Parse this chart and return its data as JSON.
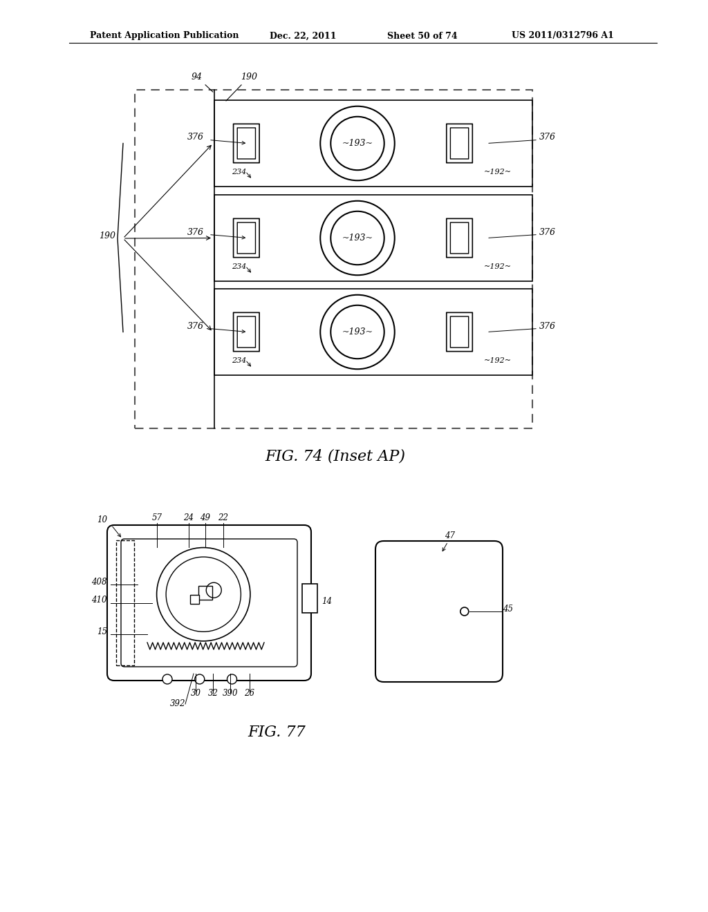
{
  "background_color": "#ffffff",
  "header_text": "Patent Application Publication",
  "header_date": "Dec. 22, 2011",
  "header_sheet": "Sheet 50 of 74",
  "header_patent": "US 2011/0312796 A1",
  "fig74_caption": "FIG. 74 (Inset AP)",
  "fig77_caption": "FIG. 77",
  "line_color": "#000000",
  "dashed_border_color": "#555555"
}
